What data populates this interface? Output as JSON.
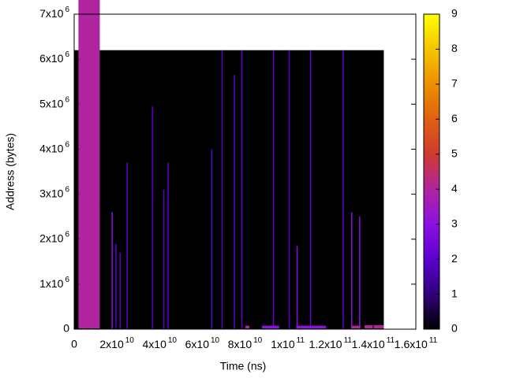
{
  "chart_data": {
    "type": "heatmap",
    "xlabel": "Time (ns)",
    "ylabel": "Address (bytes)",
    "xlim": [
      0,
      160000000000
    ],
    "ylim": [
      0,
      7000000
    ],
    "zlim": [
      0,
      9
    ],
    "xticks": [
      0,
      {
        "value": 20000000000,
        "label": "2x10^10"
      },
      {
        "value": 40000000000,
        "label": "4x10^10"
      },
      {
        "value": 60000000000,
        "label": "6x10^10"
      },
      {
        "value": 80000000000,
        "label": "8x10^10"
      },
      {
        "value": 100000000000,
        "label": "1x10^11"
      },
      {
        "value": 120000000000,
        "label": "1.2x10^11"
      },
      {
        "value": 140000000000,
        "label": "1.4x10^11"
      },
      {
        "value": 160000000000,
        "label": "1.6x10^11"
      }
    ],
    "yticks": [
      0,
      {
        "value": 1000000,
        "label": "1x10^6"
      },
      {
        "value": 2000000,
        "label": "2x10^6"
      },
      {
        "value": 3000000,
        "label": "3x10^6"
      },
      {
        "value": 4000000,
        "label": "4x10^6"
      },
      {
        "value": 5000000,
        "label": "5x10^6"
      },
      {
        "value": 6000000,
        "label": "6x10^6"
      },
      {
        "value": 7000000,
        "label": "7x10^6"
      }
    ],
    "zticks": [
      0,
      1,
      2,
      3,
      4,
      5,
      6,
      7,
      8,
      9
    ],
    "palette": [
      "#000000",
      "#30007a",
      "#5c00d0",
      "#8c10e0",
      "#b024a0",
      "#d03a30",
      "#e06010",
      "#ec9000",
      "#f6c400",
      "#ffff00"
    ],
    "background": {
      "x": [
        0,
        145000000000
      ],
      "y": [
        0,
        6200000
      ],
      "z": 0
    },
    "spikes": {
      "x": [
        4100000000,
        8100000000,
        17800000000,
        19600000000,
        21500000000,
        24800000000,
        36700000000,
        42000000000,
        44000000000,
        64400000000,
        69300000000,
        75000000000,
        78500000000,
        93300000000,
        100700000000,
        104400000000,
        110700000000,
        126000000000,
        130000000000,
        133700000000
      ],
      "top": [
        1700000,
        1200000,
        2600000,
        1900000,
        1700000,
        3700000,
        4950000,
        3100000,
        3700000,
        4000000,
        6200000,
        5650000,
        6200000,
        6200000,
        6200000,
        1850000,
        6200000,
        6200000,
        2600000,
        2500000
      ],
      "z": [
        2,
        2,
        3,
        2,
        2,
        2,
        2,
        2,
        2,
        2,
        2,
        2,
        2,
        2,
        2,
        3,
        2,
        2,
        3,
        3
      ]
    },
    "bands": {
      "x0": [
        2000000000,
        80000000000,
        88000000000,
        104000000000,
        130000000000,
        136000000000
      ],
      "x1": [
        12000000000,
        82000000000,
        96000000000,
        118000000000,
        134000000000,
        145000000000
      ],
      "top": [
        100000000,
        60000,
        60000,
        60000,
        60000,
        70000
      ],
      "z": [
        4,
        4,
        3,
        3,
        4,
        4
      ]
    }
  }
}
